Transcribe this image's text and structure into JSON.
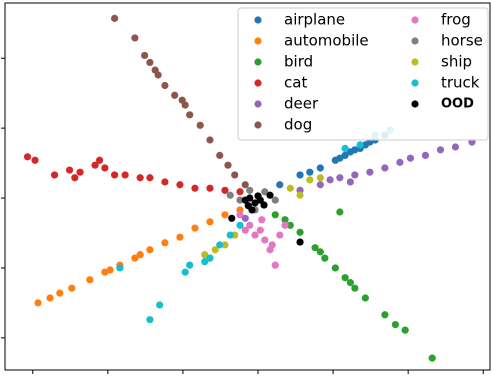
{
  "chart_data": {
    "type": "scatter",
    "legend": "upper right",
    "legend_columns": 2,
    "xlim": [
      -3.37,
      3.09
    ],
    "ylim": [
      -2.46,
      2.79
    ],
    "xticks": [
      -3,
      -2,
      -1,
      0,
      1,
      2,
      3
    ],
    "yticks": [
      -2,
      -1,
      0,
      1,
      2
    ],
    "series": [
      {
        "name": "airplane",
        "color": "#1f77b4",
        "x": [
          0.29,
          0.56,
          0.83,
          1.03,
          1.16,
          1.29,
          1.43,
          1.56,
          1.69,
          1.23,
          1.36,
          1.09,
          1.49,
          0.69
        ],
        "y": [
          0.19,
          0.33,
          0.43,
          0.54,
          0.61,
          0.69,
          0.76,
          0.83,
          0.9,
          0.66,
          0.71,
          0.57,
          0.8,
          0.37
        ]
      },
      {
        "name": "automobile",
        "color": "#ff7f0e",
        "x": [
          -2.93,
          -2.77,
          -2.64,
          -2.48,
          -2.24,
          -2.04,
          -1.84,
          -1.64,
          -1.44,
          -1.24,
          -1.04,
          -0.84,
          -0.64,
          -0.44,
          -0.24,
          -1.97,
          -1.57
        ],
        "y": [
          -1.5,
          -1.43,
          -1.36,
          -1.29,
          -1.17,
          -1.06,
          -0.96,
          -0.86,
          -0.74,
          -0.64,
          -0.56,
          -0.43,
          -0.34,
          -0.24,
          -0.17,
          -1.03,
          -0.81
        ]
      },
      {
        "name": "bird",
        "color": "#2ca02c",
        "x": [
          0.23,
          0.43,
          0.56,
          0.76,
          0.89,
          1.03,
          1.16,
          1.29,
          1.43,
          1.69,
          1.83,
          1.96,
          2.32,
          0.36,
          1.09,
          0.83,
          1.23
        ],
        "y": [
          -0.24,
          -0.39,
          -0.49,
          -0.71,
          -0.86,
          -1.0,
          -1.14,
          -1.29,
          -1.43,
          -1.67,
          -1.81,
          -1.89,
          -2.29,
          -0.31,
          -0.2,
          -0.77,
          -1.21
        ]
      },
      {
        "name": "cat",
        "color": "#d62728",
        "x": [
          -3.07,
          -2.97,
          -2.71,
          -2.51,
          -2.37,
          -2.17,
          -2.04,
          -1.91,
          -1.77,
          -1.57,
          -1.44,
          -1.24,
          -1.04,
          -0.84,
          -0.64,
          -0.44,
          -0.24,
          -2.11,
          -2.44
        ],
        "y": [
          0.59,
          0.54,
          0.33,
          0.4,
          0.37,
          0.47,
          0.43,
          0.33,
          0.33,
          0.29,
          0.29,
          0.23,
          0.19,
          0.14,
          0.14,
          0.11,
          0.09,
          0.54,
          0.29
        ]
      },
      {
        "name": "deer",
        "color": "#9467bd",
        "x": [
          0.56,
          0.83,
          1.09,
          1.29,
          1.49,
          1.69,
          1.89,
          2.03,
          2.23,
          2.43,
          2.63,
          2.85,
          1.23,
          0.96,
          -0.17
        ],
        "y": [
          0.11,
          0.19,
          0.29,
          0.33,
          0.37,
          0.43,
          0.51,
          0.57,
          0.61,
          0.69,
          0.73,
          0.8,
          0.23,
          0.26,
          -0.29
        ]
      },
      {
        "name": "dog",
        "color": "#8c564b",
        "x": [
          -1.91,
          -1.64,
          -1.51,
          -1.44,
          -1.33,
          -1.24,
          -1.11,
          -1.01,
          -0.91,
          -0.77,
          -0.64,
          -0.51,
          -0.4,
          -0.31,
          -0.17,
          -1.37,
          -0.97
        ],
        "y": [
          2.57,
          2.29,
          2.04,
          1.94,
          1.76,
          1.61,
          1.47,
          1.4,
          1.19,
          1.04,
          0.83,
          0.61,
          0.47,
          0.33,
          0.19,
          1.83,
          1.33
        ]
      },
      {
        "name": "frog",
        "color": "#e377c2",
        "x": [
          -0.24,
          -0.11,
          0.03,
          0.09,
          0.16,
          0.23,
          -0.04,
          0.29,
          -0.17,
          0.05,
          0.19,
          0.36
        ],
        "y": [
          -0.24,
          -0.39,
          -0.46,
          -0.6,
          -0.74,
          -0.96,
          -0.53,
          -0.53,
          -0.46,
          -0.31,
          -0.67,
          -0.39
        ]
      },
      {
        "name": "horse",
        "color": "#7f7f7f",
        "x": [
          -0.11,
          0.09,
          -0.24,
          0.23,
          -0.37,
          -0.04
        ],
        "y": [
          0.11,
          0.09,
          -0.03,
          -0.03,
          0.04,
          -0.17
        ]
      },
      {
        "name": "ship",
        "color": "#bcbd22",
        "x": [
          0.43,
          0.69,
          -0.44,
          -0.57,
          -0.71,
          0.56,
          -0.31,
          0.83
        ],
        "y": [
          0.14,
          0.26,
          -0.67,
          -0.74,
          -0.81,
          0.04,
          -0.53,
          0.29
        ]
      },
      {
        "name": "truck",
        "color": "#17becf",
        "x": [
          -1.44,
          -1.31,
          -0.97,
          -0.91,
          -0.64,
          -0.51,
          -0.37,
          -0.24,
          -1.84,
          1.16,
          1.36,
          1.56,
          1.76,
          -0.71
        ],
        "y": [
          -1.74,
          -1.53,
          -1.06,
          -0.96,
          -0.86,
          -0.67,
          -0.53,
          -0.39,
          -1.0,
          0.71,
          0.76,
          0.9,
          0.97,
          -0.91
        ]
      },
      {
        "name": "OOD",
        "color": "#000000",
        "x": [
          -0.17,
          -0.11,
          -0.04,
          0.03,
          -0.13,
          0.0,
          0.08,
          -0.08,
          0.56,
          -0.35,
          0.16
        ],
        "y": [
          -0.03,
          0.0,
          -0.07,
          -0.03,
          -0.11,
          0.03,
          -0.1,
          -0.17,
          -0.63,
          -0.29,
          0.04
        ]
      }
    ]
  }
}
